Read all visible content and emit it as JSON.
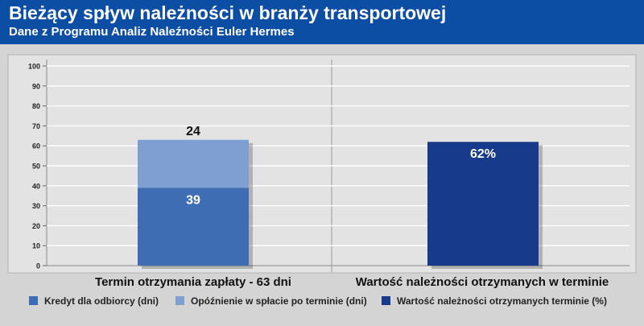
{
  "header": {
    "title": "Bieżący spływ należności w branży transportowej",
    "subtitle": "Dane z Programu Analiz Naleźności Euler Hermes"
  },
  "chart_data": {
    "type": "bar",
    "stacked": true,
    "ylim": [
      0,
      100
    ],
    "yticks": [
      0,
      10,
      20,
      30,
      40,
      50,
      60,
      70,
      80,
      90,
      100
    ],
    "grid": true,
    "legend_position": "bottom",
    "categories": [
      "Termin otrzymania zapłaty - 63 dni",
      "Wartość należności otrzymanych w terminie"
    ],
    "series": [
      {
        "name": "Kredyt dla odbiorcy (dni)",
        "color": "#3f6db3",
        "values": [
          39,
          null
        ],
        "labels": [
          "39",
          ""
        ]
      },
      {
        "name": "Opóźnienie w spłacie po terminie (dni)",
        "color": "#7f9fd3",
        "values": [
          24,
          null
        ],
        "labels": [
          "24",
          ""
        ]
      },
      {
        "name": "Wartość należności otrzymanych terminie (%)",
        "color": "#173a8b",
        "values": [
          null,
          62
        ],
        "labels": [
          "",
          "62%"
        ]
      }
    ]
  }
}
